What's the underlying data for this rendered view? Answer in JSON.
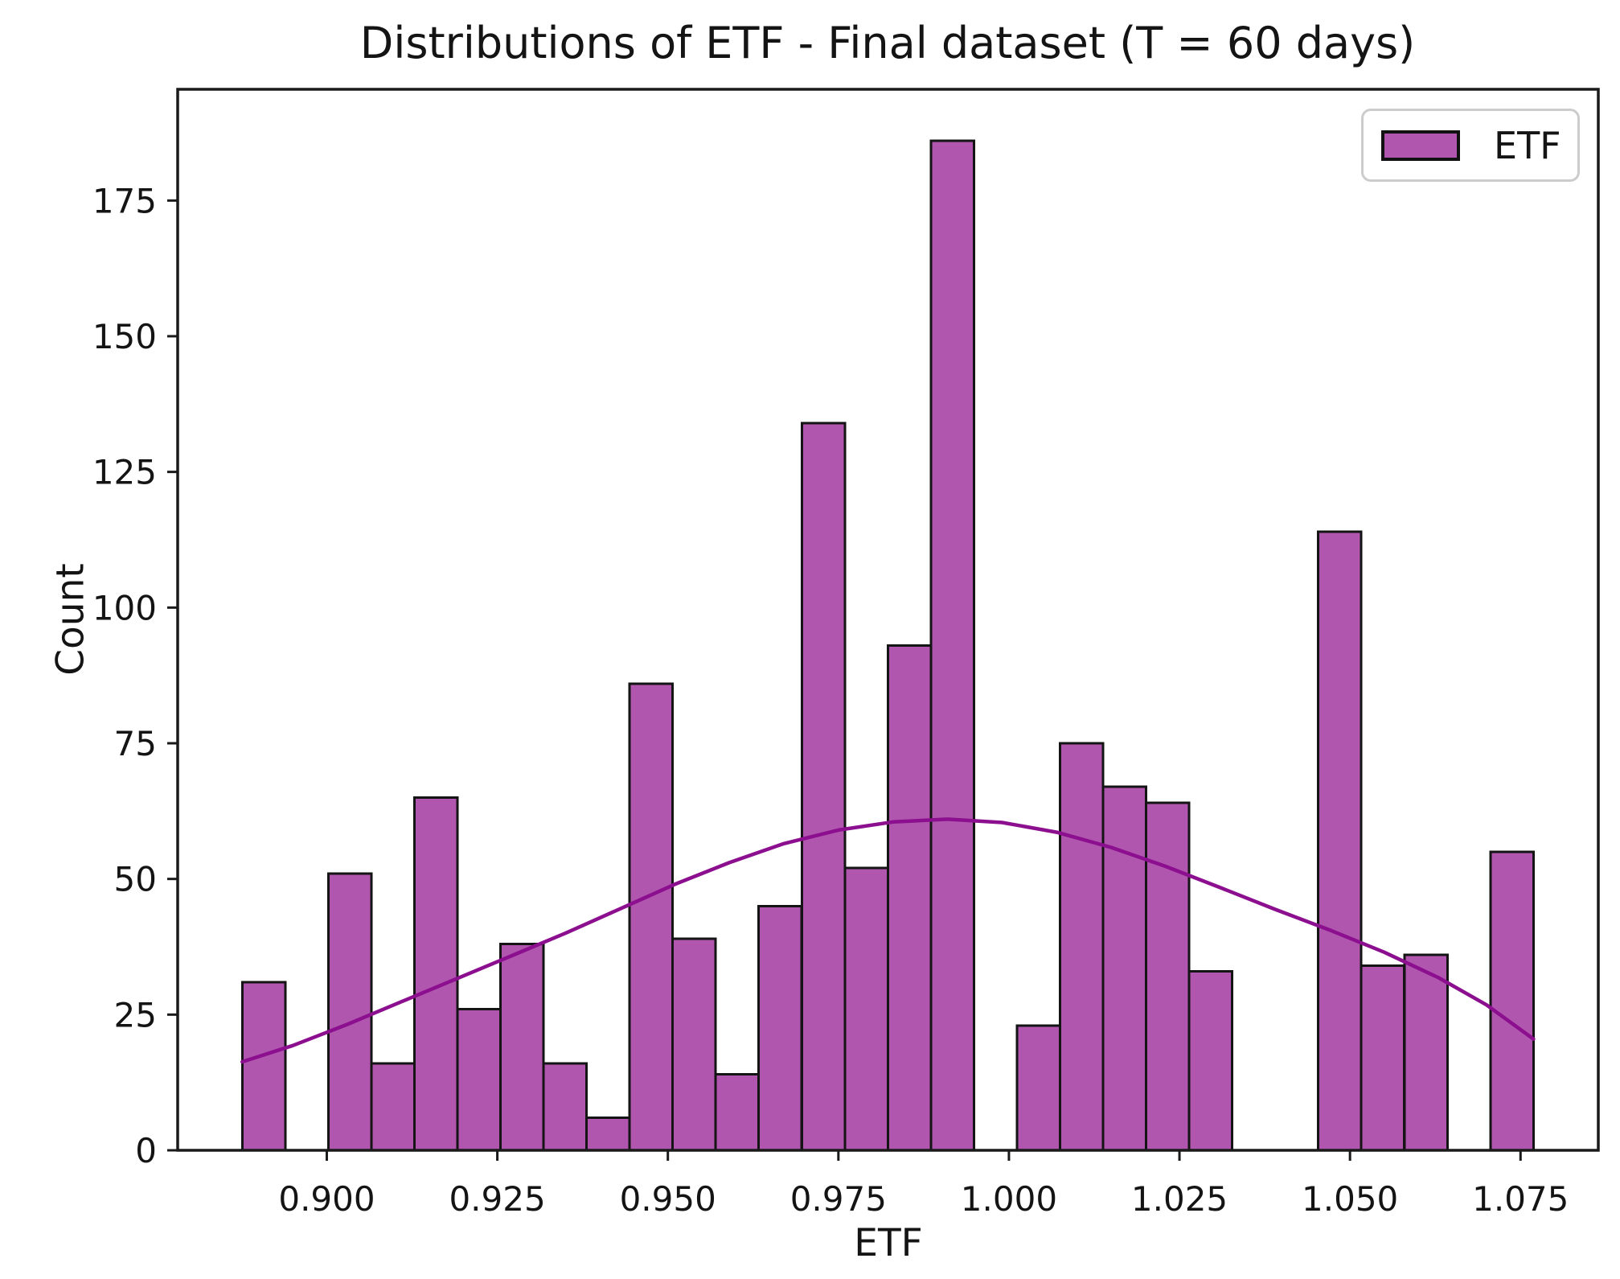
{
  "chart_data": {
    "type": "bar",
    "subtype": "histogram_with_kde",
    "title": "Distributions of ETF - Final dataset (T = 60 days)",
    "xlabel": "ETF",
    "ylabel": "Count",
    "legend": {
      "label": "ETF",
      "position": "upper right"
    },
    "grid": false,
    "xlim": [
      0.87814,
      1.0864
    ],
    "ylim": [
      0,
      195.5
    ],
    "bins": {
      "start": 0.8876,
      "width": 0.00631,
      "counts": [
        31,
        0,
        51,
        16,
        65,
        26,
        38,
        16,
        6,
        86,
        39,
        14,
        45,
        134,
        52,
        93,
        186,
        0,
        23,
        75,
        67,
        64,
        33,
        0,
        0,
        114,
        34,
        36,
        0,
        55
      ]
    },
    "kde_curve": [
      [
        0.8876,
        16.3
      ],
      [
        0.895,
        19.3
      ],
      [
        0.903,
        23.2
      ],
      [
        0.911,
        27.4
      ],
      [
        0.919,
        31.6
      ],
      [
        0.927,
        35.8
      ],
      [
        0.935,
        40.0
      ],
      [
        0.943,
        44.5
      ],
      [
        0.951,
        49.0
      ],
      [
        0.959,
        53.0
      ],
      [
        0.967,
        56.5
      ],
      [
        0.975,
        59.0
      ],
      [
        0.983,
        60.5
      ],
      [
        0.991,
        61.0
      ],
      [
        0.999,
        60.4
      ],
      [
        1.007,
        58.6
      ],
      [
        1.015,
        55.8
      ],
      [
        1.023,
        52.3
      ],
      [
        1.031,
        48.4
      ],
      [
        1.039,
        44.4
      ],
      [
        1.047,
        40.6
      ],
      [
        1.055,
        36.5
      ],
      [
        1.063,
        31.8
      ],
      [
        1.07,
        26.8
      ],
      [
        1.0769,
        20.5
      ]
    ],
    "xticks": {
      "values": [
        0.9,
        0.925,
        0.95,
        0.975,
        1.0,
        1.025,
        1.05,
        1.075
      ],
      "labels": [
        "0.900",
        "0.925",
        "0.950",
        "0.975",
        "1.000",
        "1.025",
        "1.050",
        "1.075"
      ]
    },
    "yticks": {
      "values": [
        0,
        25,
        50,
        75,
        100,
        125,
        150,
        175
      ],
      "labels": [
        "0",
        "25",
        "50",
        "75",
        "100",
        "125",
        "150",
        "175"
      ]
    },
    "colors": {
      "bar_fill": "#b156ae",
      "bar_edge": "#141414",
      "kde_line": "#8b0f8e",
      "spine": "#1a1a1a",
      "tick": "#1a1a1a",
      "text": "#141414"
    }
  }
}
